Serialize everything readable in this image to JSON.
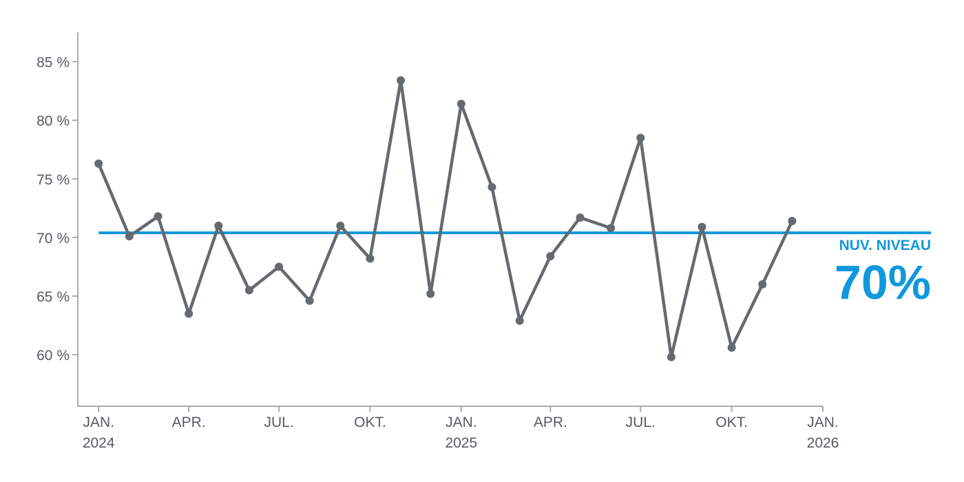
{
  "chart_data": {
    "type": "line",
    "x": [
      "2024-01",
      "2024-02",
      "2024-03",
      "2024-04",
      "2024-05",
      "2024-06",
      "2024-07",
      "2024-08",
      "2024-09",
      "2024-10",
      "2024-11",
      "2024-12",
      "2025-01",
      "2025-02",
      "2025-03",
      "2025-04",
      "2025-05",
      "2025-06",
      "2025-07",
      "2025-08",
      "2025-09",
      "2025-10",
      "2025-11",
      "2025-12"
    ],
    "series": [
      {
        "color": "#646a6e",
        "values": [
          76.3,
          70.1,
          71.8,
          63.5,
          71.0,
          65.5,
          67.5,
          64.6,
          71.0,
          68.2,
          83.4,
          65.2,
          81.4,
          74.3,
          62.9,
          68.4,
          71.7,
          70.8,
          78.5,
          59.8,
          70.9,
          60.6,
          66.0,
          71.4
        ]
      }
    ],
    "xlim": [
      "2023-12-11",
      "2026-01-01"
    ],
    "xticks": [
      {
        "value": "2024-01",
        "label": "JAN. 2024"
      },
      {
        "value": "2024-04",
        "label": "APR."
      },
      {
        "value": "2024-07",
        "label": "JUL."
      },
      {
        "value": "2024-10",
        "label": "OKT."
      },
      {
        "value": "2025-01",
        "label": "JAN. 2025"
      },
      {
        "value": "2025-04",
        "label": "APR."
      },
      {
        "value": "2025-07",
        "label": "JUL."
      },
      {
        "value": "2025-10",
        "label": "OKT."
      },
      {
        "value": "2026-01",
        "label": "JAN. 2026"
      }
    ],
    "ylim": [
      55.6,
      87.5
    ],
    "yticks": [
      {
        "value": 60,
        "label": "60 %"
      },
      {
        "value": 65,
        "label": "65 %"
      },
      {
        "value": 70,
        "label": "70 %"
      },
      {
        "value": 75,
        "label": "75 %"
      },
      {
        "value": 80,
        "label": "80 %"
      },
      {
        "value": 85,
        "label": "85 %"
      }
    ],
    "reference_line": {
      "value": 70.4,
      "label": "NUV. NIVEAU",
      "value_label": "70%",
      "color": "#0f98dc"
    }
  }
}
